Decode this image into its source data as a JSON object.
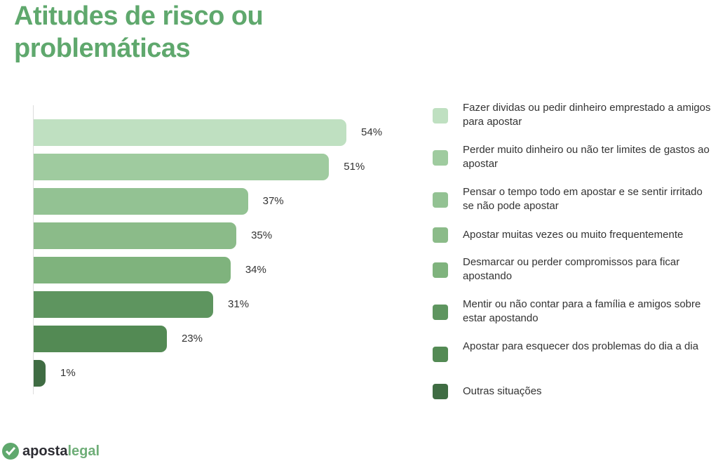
{
  "chart_data": {
    "type": "bar",
    "orientation": "horizontal",
    "title": "Atitudes de risco ou problemáticas",
    "categories": [
      "Fazer dividas ou pedir dinheiro emprestado a amigos para apostar",
      "Perder muito dinheiro ou não ter limites de gastos ao apostar",
      "Pensar o tempo todo em apostar e se sentir irritado se não pode apostar",
      "Apostar muitas vezes ou muito frequentemente",
      "Desmarcar ou perder compromissos para ficar apostando",
      "Mentir ou não contar para a família e amigos sobre estar apostando",
      "Apostar para esquecer dos problemas do dia a dia",
      "Outras situações"
    ],
    "values": [
      54,
      51,
      37,
      35,
      34,
      31,
      23,
      1
    ],
    "labels": [
      "54%",
      "51%",
      "37%",
      "35%",
      "34%",
      "31%",
      "23%",
      "1%"
    ],
    "colors": [
      "#bfe0c1",
      "#9fcb9f",
      "#93c293",
      "#8bbb89",
      "#7fb37d",
      "#5e955f",
      "#538a54",
      "#3f6c43"
    ],
    "legend": "right",
    "grid": false
  },
  "logo": {
    "part1": "aposta",
    "part2": "legal"
  }
}
